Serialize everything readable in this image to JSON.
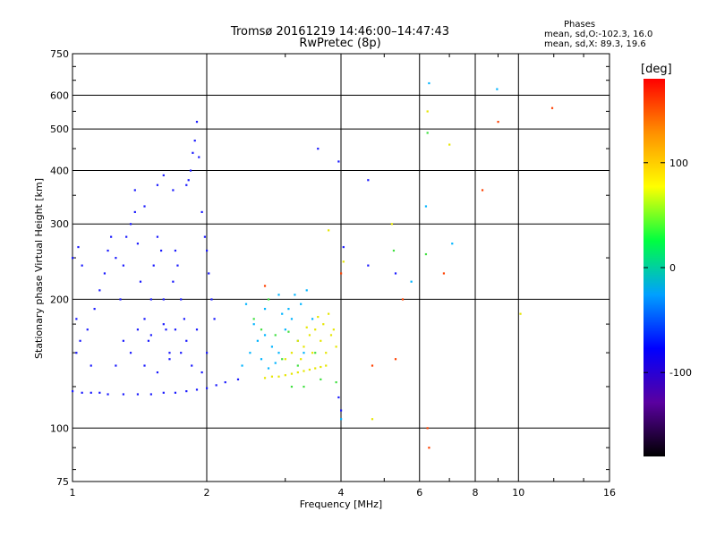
{
  "chart_data": {
    "type": "scatter",
    "title": "Tromsø 20161219 14:46:00–14:47:43",
    "subtitle": "RwPretec (8p)",
    "xlabel": "Frequency [MHz]",
    "ylabel": "Stationary phase Virtual Height [km]",
    "x_scale": "log",
    "y_scale": "log",
    "xlim": [
      1,
      16
    ],
    "ylim": [
      75,
      750
    ],
    "x_ticks": [
      1,
      2,
      4,
      6,
      8,
      10,
      16
    ],
    "y_ticks": [
      75,
      100,
      200,
      300,
      400,
      500,
      600,
      750
    ],
    "grid": true,
    "phase_legend": {
      "title": "Phases",
      "line_o": "mean, sd,O:-102.3, 16.0",
      "line_x": "mean, sd,X:  89.3, 19.6"
    },
    "colorbar": {
      "label": "[deg]",
      "range": [
        -180,
        180
      ],
      "ticks": [
        100,
        0,
        -100
      ],
      "colors": [
        "#000000",
        "#5a00a0",
        "#0000ff",
        "#00a0ff",
        "#00ff40",
        "#ffff00",
        "#ff9000",
        "#ff0000"
      ]
    },
    "series": [
      {
        "points": [
          [
            1.0,
            122
          ],
          [
            1.05,
            121
          ],
          [
            1.1,
            121
          ],
          [
            1.15,
            121
          ],
          [
            1.2,
            120
          ],
          [
            1.3,
            120
          ],
          [
            1.4,
            120
          ],
          [
            1.5,
            120
          ],
          [
            1.6,
            121
          ],
          [
            1.7,
            121
          ],
          [
            1.8,
            122
          ],
          [
            1.9,
            123
          ],
          [
            2.0,
            124
          ],
          [
            2.1,
            126
          ],
          [
            2.2,
            128
          ],
          [
            2.35,
            130
          ],
          [
            1.02,
            150
          ],
          [
            1.04,
            160
          ],
          [
            1.02,
            180
          ],
          [
            1.0,
            250
          ],
          [
            1.03,
            265
          ],
          [
            1.05,
            240
          ],
          [
            1.08,
            170
          ],
          [
            1.1,
            140
          ],
          [
            1.12,
            190
          ],
          [
            1.15,
            210
          ],
          [
            1.18,
            230
          ],
          [
            1.2,
            260
          ],
          [
            1.22,
            280
          ],
          [
            1.25,
            250
          ],
          [
            1.28,
            200
          ],
          [
            1.3,
            240
          ],
          [
            1.32,
            280
          ],
          [
            1.35,
            300
          ],
          [
            1.38,
            320
          ],
          [
            1.4,
            270
          ],
          [
            1.42,
            220
          ],
          [
            1.45,
            180
          ],
          [
            1.48,
            160
          ],
          [
            1.5,
            200
          ],
          [
            1.52,
            240
          ],
          [
            1.55,
            280
          ],
          [
            1.58,
            260
          ],
          [
            1.6,
            200
          ],
          [
            1.62,
            170
          ],
          [
            1.65,
            150
          ],
          [
            1.68,
            220
          ],
          [
            1.7,
            260
          ],
          [
            1.72,
            240
          ],
          [
            1.75,
            200
          ],
          [
            1.78,
            180
          ],
          [
            1.8,
            370
          ],
          [
            1.82,
            380
          ],
          [
            1.84,
            400
          ],
          [
            1.86,
            440
          ],
          [
            1.88,
            470
          ],
          [
            1.9,
            520
          ],
          [
            1.92,
            430
          ],
          [
            1.95,
            320
          ],
          [
            1.98,
            280
          ],
          [
            2.0,
            260
          ],
          [
            2.02,
            230
          ],
          [
            2.05,
            200
          ],
          [
            2.08,
            180
          ],
          [
            1.25,
            140
          ],
          [
            1.35,
            150
          ],
          [
            1.45,
            140
          ],
          [
            1.55,
            135
          ],
          [
            1.65,
            145
          ],
          [
            1.75,
            150
          ],
          [
            1.85,
            140
          ],
          [
            1.95,
            135
          ],
          [
            1.3,
            160
          ],
          [
            1.4,
            170
          ],
          [
            1.5,
            165
          ],
          [
            1.6,
            175
          ],
          [
            1.7,
            170
          ],
          [
            1.8,
            160
          ],
          [
            1.9,
            170
          ],
          [
            2.0,
            150
          ],
          [
            1.38,
            360
          ],
          [
            1.55,
            370
          ],
          [
            1.6,
            390
          ],
          [
            1.68,
            360
          ],
          [
            1.45,
            330
          ],
          [
            3.55,
            450
          ],
          [
            3.95,
            420
          ],
          [
            4.6,
            380
          ],
          [
            4.05,
            265
          ],
          [
            4.6,
            240
          ],
          [
            5.3,
            230
          ],
          [
            3.95,
            118
          ],
          [
            4.0,
            110
          ]
        ],
        "color": "#1a1aff"
      },
      {
        "points": [
          [
            2.4,
            140
          ],
          [
            2.5,
            150
          ],
          [
            2.6,
            160
          ],
          [
            2.7,
            165
          ],
          [
            2.8,
            155
          ],
          [
            2.9,
            150
          ],
          [
            3.0,
            170
          ],
          [
            3.1,
            180
          ],
          [
            3.2,
            160
          ],
          [
            3.3,
            150
          ],
          [
            2.55,
            175
          ],
          [
            2.65,
            145
          ],
          [
            2.75,
            138
          ],
          [
            2.85,
            142
          ],
          [
            2.95,
            185
          ],
          [
            3.05,
            190
          ],
          [
            3.15,
            205
          ],
          [
            3.25,
            195
          ],
          [
            3.35,
            210
          ],
          [
            3.45,
            180
          ],
          [
            2.45,
            195
          ],
          [
            2.7,
            190
          ],
          [
            2.9,
            205
          ],
          [
            4.0,
            105
          ],
          [
            6.2,
            330
          ],
          [
            6.3,
            640
          ],
          [
            8.95,
            620
          ],
          [
            7.1,
            270
          ],
          [
            5.75,
            220
          ]
        ],
        "color": "#00b4ff"
      },
      {
        "points": [
          [
            2.7,
            131
          ],
          [
            2.8,
            132
          ],
          [
            2.9,
            132
          ],
          [
            3.0,
            133
          ],
          [
            3.1,
            134
          ],
          [
            3.2,
            135
          ],
          [
            3.3,
            136
          ],
          [
            3.4,
            137
          ],
          [
            3.5,
            138
          ],
          [
            3.6,
            139
          ],
          [
            3.7,
            140
          ],
          [
            3.1,
            150
          ],
          [
            3.2,
            160
          ],
          [
            3.3,
            155
          ],
          [
            3.4,
            165
          ],
          [
            3.5,
            170
          ],
          [
            3.6,
            160
          ],
          [
            3.7,
            150
          ],
          [
            3.8,
            165
          ],
          [
            3.25,
            145
          ],
          [
            3.45,
            150
          ],
          [
            3.65,
            175
          ],
          [
            3.75,
            185
          ],
          [
            3.55,
            182
          ],
          [
            3.35,
            172
          ],
          [
            3.85,
            170
          ],
          [
            3.0,
            145
          ],
          [
            3.9,
            155
          ],
          [
            4.05,
            245
          ],
          [
            3.75,
            290
          ],
          [
            6.25,
            550
          ],
          [
            7.0,
            460
          ],
          [
            10.1,
            185
          ],
          [
            4.7,
            105
          ],
          [
            5.2,
            300
          ]
        ],
        "color": "#e6e600"
      },
      {
        "points": [
          [
            2.55,
            180
          ],
          [
            2.65,
            170
          ],
          [
            2.85,
            165
          ],
          [
            2.75,
            200
          ],
          [
            2.95,
            145
          ],
          [
            3.05,
            168
          ],
          [
            3.2,
            140
          ],
          [
            3.5,
            150
          ],
          [
            3.9,
            128
          ],
          [
            3.3,
            125
          ],
          [
            3.6,
            130
          ],
          [
            3.1,
            125
          ],
          [
            6.25,
            490
          ],
          [
            6.2,
            255
          ],
          [
            5.25,
            260
          ]
        ],
        "color": "#40e040"
      },
      {
        "points": [
          [
            6.25,
            100
          ],
          [
            6.3,
            90
          ],
          [
            8.3,
            360
          ],
          [
            9.0,
            520
          ],
          [
            11.9,
            560
          ],
          [
            5.3,
            145
          ],
          [
            4.7,
            140
          ],
          [
            4.0,
            230
          ],
          [
            2.7,
            215
          ],
          [
            5.5,
            200
          ],
          [
            6.8,
            230
          ]
        ],
        "color": "#ff4000"
      }
    ]
  }
}
